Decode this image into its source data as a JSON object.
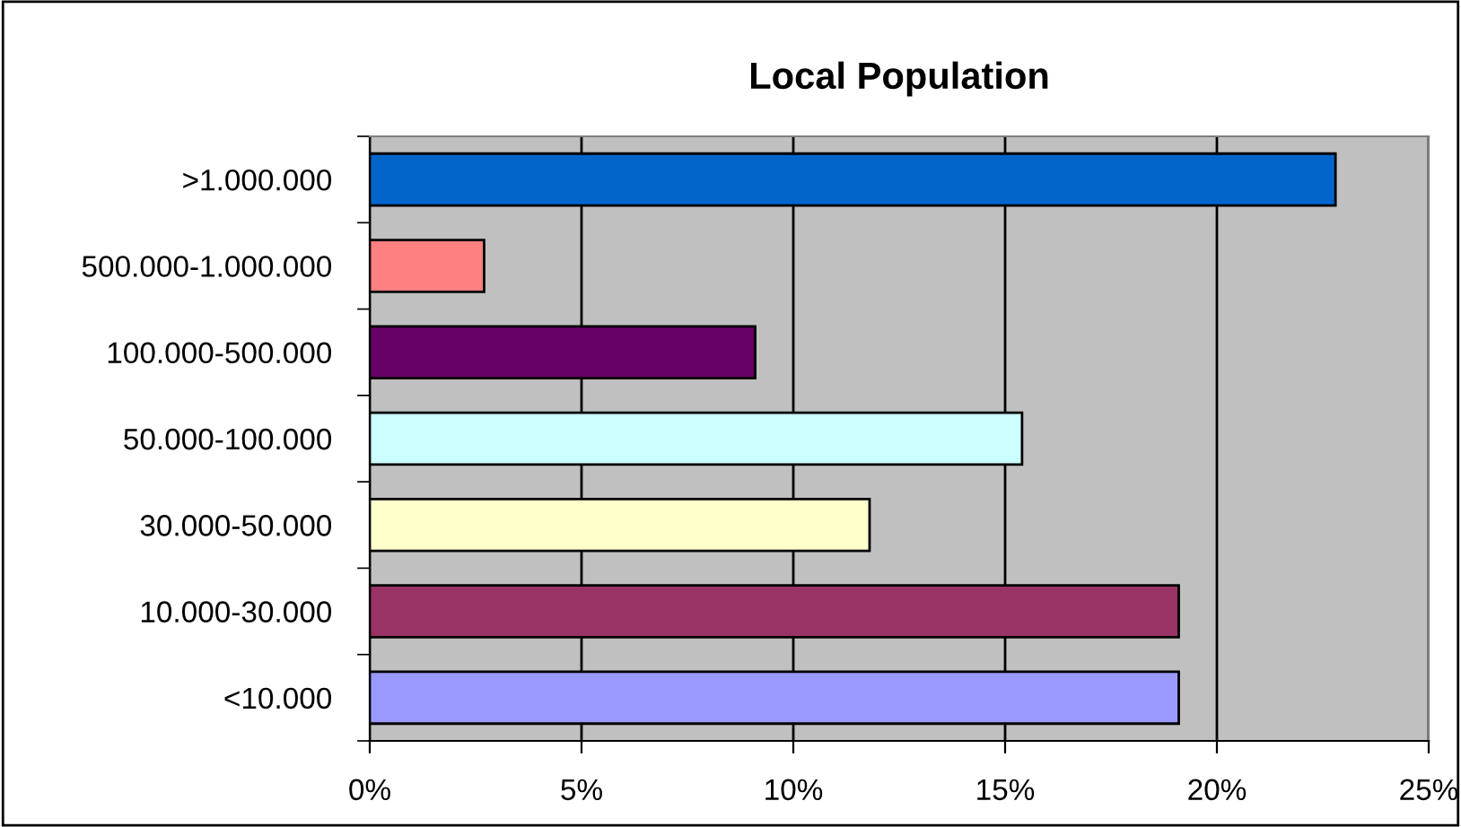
{
  "chart_data": {
    "type": "bar",
    "orientation": "horizontal",
    "title": "Local Population",
    "categories": [
      ">1.000.000",
      "500.000-1.000.000",
      "100.000-500.000",
      "50.000-100.000",
      "30.000-50.000",
      "10.000-30.000",
      "<10.000"
    ],
    "values": [
      22.8,
      2.7,
      9.1,
      15.4,
      11.8,
      19.1,
      19.1
    ],
    "colors": [
      "#0066cc",
      "#ff8080",
      "#660066",
      "#ccffff",
      "#ffffcc",
      "#993366",
      "#9999ff"
    ],
    "xlim": [
      0,
      25
    ],
    "xticks": [
      {
        "value": 0,
        "label": "0%"
      },
      {
        "value": 5,
        "label": "5%"
      },
      {
        "value": 10,
        "label": "10%"
      },
      {
        "value": 15,
        "label": "15%"
      },
      {
        "value": 20,
        "label": "20%"
      },
      {
        "value": 25,
        "label": "25%"
      }
    ],
    "grid": "x"
  }
}
